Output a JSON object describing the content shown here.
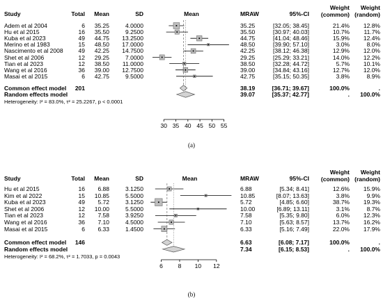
{
  "chart_data": [
    {
      "type": "forest",
      "label": "(a)",
      "headers": {
        "study": "Study",
        "total": "Total",
        "mean": "Mean",
        "sd": "SD",
        "plot": "Mean",
        "mraw": "MRAW",
        "ci": "95%-CI",
        "w_common": "Weight\n(common)",
        "w_random": "Weight\n(random)"
      },
      "xlim": [
        25,
        58
      ],
      "ticks": [
        30,
        35,
        40,
        45,
        50,
        55
      ],
      "studies": [
        {
          "study": "Adem et al 2004",
          "total": "6",
          "mean": "35.25",
          "sd": "4.0000",
          "mraw": "35.25",
          "ci": "[32.05; 38.45]",
          "w_common": "21.4%",
          "w_random": "12.8%",
          "est": 35.25,
          "lo": 32.05,
          "hi": 38.45,
          "wc": 21.4
        },
        {
          "study": "Hu et al 2015",
          "total": "16",
          "mean": "35.50",
          "sd": "9.2500",
          "mraw": "35.50",
          "ci": "[30.97; 40.03]",
          "w_common": "10.7%",
          "w_random": "11.7%",
          "est": 35.5,
          "lo": 30.97,
          "hi": 40.03,
          "wc": 10.7
        },
        {
          "study": "Kuba et al 2023",
          "total": "49",
          "mean": "44.75",
          "sd": "13.2500",
          "mraw": "44.75",
          "ci": "[41.04; 48.46]",
          "w_common": "15.9%",
          "w_random": "12.4%",
          "est": 44.75,
          "lo": 41.04,
          "hi": 48.46,
          "wc": 15.9
        },
        {
          "study": "Merino et al 1983",
          "total": "15",
          "mean": "48.50",
          "sd": "17.0000",
          "mraw": "48.50",
          "ci": "[39.90; 57.10]",
          "w_common": "3.0%",
          "w_random": "8.0%",
          "est": 48.5,
          "lo": 39.9,
          "hi": 57.1,
          "wc": 3.0
        },
        {
          "study": "Nascimento et al 2008",
          "total": "49",
          "mean": "42.25",
          "sd": "14.7500",
          "mraw": "42.25",
          "ci": "[38.12; 46.38]",
          "w_common": "12.9%",
          "w_random": "12.0%",
          "est": 42.25,
          "lo": 38.12,
          "hi": 46.38,
          "wc": 12.9
        },
        {
          "study": "Shet et al 2006",
          "total": "12",
          "mean": "29.25",
          "sd": "7.0000",
          "mraw": "29.25",
          "ci": "[25.29; 33.21]",
          "w_common": "14.0%",
          "w_random": "12.2%",
          "est": 29.25,
          "lo": 25.29,
          "hi": 33.21,
          "wc": 14.0
        },
        {
          "study": "Tian et al 2023",
          "total": "12",
          "mean": "38.50",
          "sd": "11.0000",
          "mraw": "38.50",
          "ci": "[32.28; 44.72]",
          "w_common": "5.7%",
          "w_random": "10.1%",
          "est": 38.5,
          "lo": 32.28,
          "hi": 44.72,
          "wc": 5.7
        },
        {
          "study": "Wang et al 2016",
          "total": "36",
          "mean": "39.00",
          "sd": "12.7500",
          "mraw": "39.00",
          "ci": "[34.84; 43.16]",
          "w_common": "12.7%",
          "w_random": "12.0%",
          "est": 39.0,
          "lo": 34.84,
          "hi": 43.16,
          "wc": 12.7
        },
        {
          "study": "Masai et al 2015",
          "total": "6",
          "mean": "42.75",
          "sd": "9.5000",
          "mraw": "42.75",
          "ci": "[35.15; 50.35]",
          "w_common": "3.8%",
          "w_random": "8.9%",
          "est": 42.75,
          "lo": 35.15,
          "hi": 50.35,
          "wc": 3.8
        }
      ],
      "common": {
        "label": "Common effect model",
        "total": "201",
        "mraw": "38.19",
        "ci": "[36.71; 39.67]",
        "w_common": "100.0%",
        "w_random": ".",
        "est": 38.19,
        "lo": 36.71,
        "hi": 39.67
      },
      "random": {
        "label": "Random effects model",
        "mraw": "39.07",
        "ci": "[35.37; 42.77]",
        "w_common": ".",
        "w_random": "100.0%",
        "est": 39.07,
        "lo": 35.37,
        "hi": 42.77
      },
      "heterogeneity": "Heterogeneity: I² = 83.0%, τ² = 25.2267, p < 0.0001"
    },
    {
      "type": "forest",
      "label": "(b)",
      "headers": {
        "study": "Study",
        "total": "Total",
        "mean": "Mean",
        "sd": "SD",
        "plot": "Mean",
        "mraw": "MRAW",
        "ci": "95%-CI",
        "w_common": "Weight\n(common)",
        "w_random": "Weight\n(random)"
      },
      "xlim": [
        4.6,
        13.6
      ],
      "ticks": [
        6,
        8,
        10,
        12
      ],
      "studies": [
        {
          "study": "Hu et al 2015",
          "total": "16",
          "mean": "6.88",
          "sd": "3.1250",
          "mraw": "6.88",
          "ci": "[5.34; 8.41]",
          "w_common": "12.6%",
          "w_random": "15.9%",
          "est": 6.88,
          "lo": 5.34,
          "hi": 8.41,
          "wc": 12.6
        },
        {
          "study": "Kim et al 2022",
          "total": "15",
          "mean": "10.85",
          "sd": "5.5000",
          "mraw": "10.85",
          "ci": "[8.07; 13.63]",
          "w_common": "3.8%",
          "w_random": "9.9%",
          "est": 10.85,
          "lo": 8.07,
          "hi": 13.63,
          "wc": 3.8
        },
        {
          "study": "Kuba et al 2023",
          "total": "49",
          "mean": "5.72",
          "sd": "3.1250",
          "mraw": "5.72",
          "ci": "[4.85; 6.60]",
          "w_common": "38.7%",
          "w_random": "19.3%",
          "est": 5.72,
          "lo": 4.85,
          "hi": 6.6,
          "wc": 38.7
        },
        {
          "study": "Shet et al 2006",
          "total": "12",
          "mean": "10.00",
          "sd": "5.5000",
          "mraw": "10.00",
          "ci": "[6.89; 13.11]",
          "w_common": "3.1%",
          "w_random": "8.7%",
          "est": 10.0,
          "lo": 6.89,
          "hi": 13.11,
          "wc": 3.1
        },
        {
          "study": "Tian et al 2023",
          "total": "12",
          "mean": "7.58",
          "sd": "3.9250",
          "mraw": "7.58",
          "ci": "[5.35; 9.80]",
          "w_common": "6.0%",
          "w_random": "12.3%",
          "est": 7.58,
          "lo": 5.35,
          "hi": 9.8,
          "wc": 6.0
        },
        {
          "study": "Wang et al 2016",
          "total": "36",
          "mean": "7.10",
          "sd": "4.5000",
          "mraw": "7.10",
          "ci": "[5.63; 8.57]",
          "w_common": "13.7%",
          "w_random": "16.2%",
          "est": 7.1,
          "lo": 5.63,
          "hi": 8.57,
          "wc": 13.7
        },
        {
          "study": "Masai et al 2015",
          "total": "6",
          "mean": "6.33",
          "sd": "1.4500",
          "mraw": "6.33",
          "ci": "[5.16; 7.49]",
          "w_common": "22.0%",
          "w_random": "17.9%",
          "est": 6.33,
          "lo": 5.16,
          "hi": 7.49,
          "wc": 22.0
        }
      ],
      "common": {
        "label": "Common effect model",
        "total": "146",
        "mraw": "6.63",
        "ci": "[6.08; 7.17]",
        "w_common": "100.0%",
        "w_random": ".",
        "est": 6.63,
        "lo": 6.08,
        "hi": 7.17
      },
      "random": {
        "label": "Random effects model",
        "mraw": "7.34",
        "ci": "[6.15; 8.53]",
        "w_common": ".",
        "w_random": "100.0%",
        "est": 7.34,
        "lo": 6.15,
        "hi": 8.53
      },
      "heterogeneity": "Heterogeneity: I² = 68.2%, τ² = 1.7033, p = 0.0043"
    }
  ]
}
